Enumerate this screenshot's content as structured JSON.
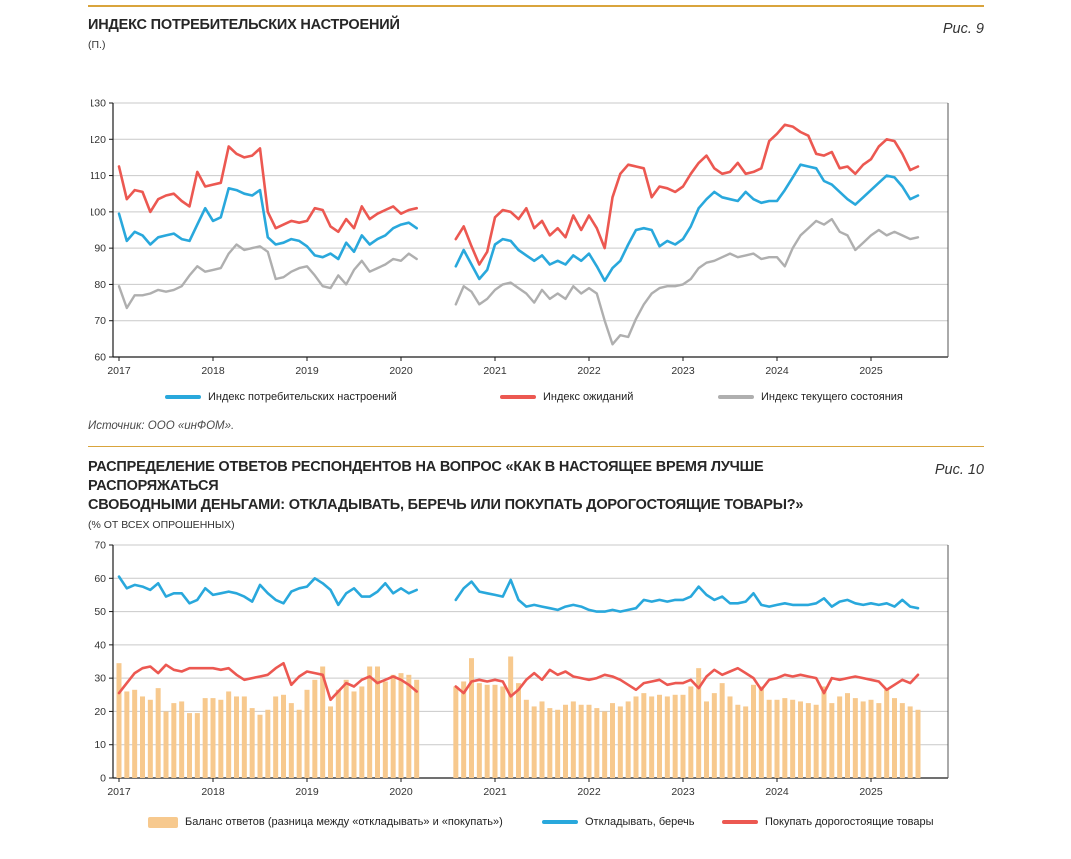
{
  "page": {
    "background": "#ffffff",
    "accent_rule_color": "#D9A43C"
  },
  "figure9": {
    "fig_label": "Рис. 9",
    "title": "ИНДЕКС ПОТРЕБИТЕЛЬСКИХ НАСТРОЕНИЙ",
    "subtitle": "(П.)",
    "source": "Источник: ООО «инФОМ».",
    "legend": [
      {
        "label": "Индекс потребительских настроений",
        "color": "#29A8DC",
        "type": "line"
      },
      {
        "label": "Индекс ожиданий",
        "color": "#EC5851",
        "type": "line"
      },
      {
        "label": "Индекс текущего состояния",
        "color": "#AFAFAF",
        "type": "line"
      }
    ]
  },
  "figure10": {
    "fig_label": "Рис. 10",
    "title_line1": "РАСПРЕДЕЛЕНИЕ ОТВЕТОВ РЕСПОНДЕНТОВ НА ВОПРОС «КАК В НАСТОЯЩЕЕ ВРЕМЯ ЛУЧШЕ РАСПОРЯЖАТЬСЯ",
    "title_line2": "СВОБОДНЫМИ ДЕНЬГАМИ: ОТКЛАДЫВАТЬ, БЕРЕЧЬ ИЛИ ПОКУПАТЬ ДОРОГОСТОЯЩИЕ ТОВАРЫ?»",
    "subtitle": "(% ОТ ВСЕХ ОПРОШЕННЫХ)",
    "legend": [
      {
        "label": "Баланс ответов (разница между «откладывать» и «покупать»)",
        "color": "#F7C98E",
        "type": "bar"
      },
      {
        "label": "Откладывать, беречь",
        "color": "#29A8DC",
        "type": "line"
      },
      {
        "label": "Покупать дорогостоящие товары",
        "color": "#EC5851",
        "type": "line"
      }
    ]
  },
  "chart_data": [
    {
      "id": "consumer-sentiment-index",
      "type": "line",
      "title": "ИНДЕКС ПОТРЕБИТЕЛЬСКИХ НАСТРОЕНИЙ (П.)",
      "x_unit": "month",
      "x_start": "2017-01",
      "x_end": "2025-07",
      "data_gap_months": [
        "2020-04",
        "2020-05",
        "2020-06",
        "2020-07"
      ],
      "year_ticks": [
        2017,
        2018,
        2019,
        2020,
        2021,
        2022,
        2023,
        2024,
        2025
      ],
      "ylim": [
        60,
        130
      ],
      "ytick_step": 10,
      "grid": true,
      "legend_position": "bottom",
      "series": [
        {
          "name": "Индекс потребительских настроений",
          "color": "#29A8DC",
          "width": 2.6,
          "values": [
            99.5,
            92,
            94.5,
            93.5,
            91,
            93,
            93.5,
            94,
            92.5,
            92,
            96.5,
            101,
            97.5,
            98.5,
            106.5,
            106,
            105,
            104.5,
            106,
            93,
            91,
            91.5,
            92.5,
            92,
            90.5,
            88,
            87.5,
            88.5,
            87,
            91.5,
            89,
            93.5,
            91,
            92.5,
            93.5,
            95.5,
            96.5,
            97,
            95.5,
            null,
            null,
            null,
            null,
            85,
            89.5,
            85.5,
            81.5,
            84,
            91,
            92.5,
            92,
            89.5,
            88,
            86.5,
            88,
            85.5,
            86.5,
            85.5,
            88,
            86.5,
            88.5,
            85,
            81,
            84.5,
            86.5,
            91,
            95,
            95.5,
            95,
            90.5,
            92,
            91,
            92.5,
            96,
            101,
            103.5,
            105.5,
            104,
            103.5,
            103,
            105.5,
            103.5,
            102.5,
            103,
            103,
            106,
            109.5,
            113,
            112.5,
            112,
            108.5,
            107.5,
            105.5,
            103.5,
            102,
            104,
            106,
            108,
            110,
            109.5,
            107,
            103.5,
            104.5
          ]
        },
        {
          "name": "Индекс ожиданий",
          "color": "#EC5851",
          "width": 2.6,
          "values": [
            112.5,
            103.5,
            106,
            105.5,
            100,
            103.5,
            104.5,
            105,
            103,
            101.5,
            111,
            107,
            107.5,
            108,
            118,
            116,
            115,
            115.5,
            117.5,
            100,
            95.5,
            96.5,
            97.5,
            97,
            97.5,
            101,
            100.5,
            96,
            94.5,
            98,
            95.5,
            101.5,
            98,
            99.5,
            100.5,
            101.5,
            99.5,
            100.5,
            101,
            null,
            null,
            null,
            null,
            92.5,
            96,
            90.5,
            85.5,
            89,
            98.5,
            100.5,
            100,
            98,
            101,
            95.5,
            97.5,
            93.5,
            95.5,
            93,
            99,
            95,
            99,
            95.5,
            90,
            104,
            110.5,
            113,
            112.5,
            112,
            104,
            107,
            106.5,
            105.5,
            107,
            110.5,
            113.5,
            115.5,
            112,
            110.5,
            111,
            113.5,
            110.5,
            111,
            112,
            119.5,
            121.5,
            124,
            123.5,
            122,
            121,
            116,
            115.5,
            116.5,
            112,
            112.5,
            110.5,
            113,
            114.5,
            118,
            120,
            119.5,
            116,
            111.5,
            112.5
          ]
        },
        {
          "name": "Индекс текущего состояния",
          "color": "#AFAFAF",
          "width": 2.4,
          "values": [
            79.5,
            73.5,
            77,
            77,
            77.5,
            78.5,
            78,
            78.5,
            79.5,
            82.5,
            85,
            83.5,
            84,
            84.5,
            88.5,
            91,
            89.5,
            90,
            90.5,
            89,
            81.5,
            82,
            83.5,
            84.5,
            85,
            82.5,
            79.5,
            79,
            82.5,
            80,
            84,
            86.5,
            83.5,
            84.5,
            85.5,
            87,
            86.5,
            88.5,
            87,
            null,
            null,
            null,
            null,
            74.5,
            79.5,
            78,
            74.5,
            76,
            78.5,
            80,
            80.5,
            79,
            77.5,
            75,
            78.5,
            76,
            77.5,
            76,
            79.5,
            77.5,
            79,
            77.5,
            70,
            63.5,
            66,
            65.5,
            70.5,
            74.5,
            77.5,
            79,
            79.5,
            79.5,
            80,
            81.5,
            84.5,
            86,
            86.5,
            87.5,
            88.5,
            87.5,
            88,
            88.5,
            87,
            87.5,
            87.5,
            85,
            90,
            93.5,
            95.5,
            97.5,
            96.5,
            98,
            94.5,
            93.5,
            89.5,
            91.5,
            93.5,
            95,
            93.5,
            94.5,
            93.5,
            92.5,
            93
          ]
        }
      ]
    },
    {
      "id": "free-money-answers",
      "type": "bar+line",
      "title": "РАСПРЕДЕЛЕНИЕ ОТВЕТОВ РЕСПОНДЕНТОВ (% ОТ ВСЕХ ОПРОШЕННЫХ)",
      "x_unit": "month",
      "x_start": "2017-01",
      "x_end": "2025-07",
      "data_gap_months": [
        "2020-04",
        "2020-05",
        "2020-06",
        "2020-07"
      ],
      "year_ticks": [
        2017,
        2018,
        2019,
        2020,
        2021,
        2022,
        2023,
        2024,
        2025
      ],
      "ylim": [
        0,
        70
      ],
      "ytick_step": 10,
      "grid": true,
      "legend_position": "bottom",
      "bar_series": {
        "name": "Баланс ответов (разница между «откладывать» и «покупать»)",
        "color": "#F7C98E",
        "values": [
          34.5,
          26,
          26.5,
          24.5,
          23.5,
          27,
          20,
          22.5,
          23,
          19.5,
          19.5,
          24,
          24,
          23.5,
          26,
          24.5,
          24.5,
          21,
          19,
          20.5,
          24.5,
          25,
          22.5,
          20.5,
          26.5,
          29.5,
          33.5,
          21.5,
          26.5,
          29.5,
          26,
          27.5,
          33.5,
          33.5,
          29,
          31,
          31.5,
          31,
          29.5,
          null,
          null,
          null,
          null,
          27.5,
          29,
          36,
          28.5,
          28,
          28,
          27.5,
          36.5,
          28.5,
          23.5,
          21.5,
          23,
          21,
          20.5,
          22,
          23,
          22,
          22,
          21,
          20,
          22.5,
          21.5,
          23,
          24.5,
          25.5,
          24.5,
          25,
          24.5,
          25,
          25,
          27.5,
          33,
          23,
          25.5,
          28.5,
          24.5,
          22,
          21.5,
          28,
          27.5,
          23.5,
          23.5,
          24,
          23.5,
          23,
          22.5,
          22,
          27.5,
          22.5,
          24.5,
          25.5,
          24,
          23,
          23.5,
          22.5,
          26.5,
          24,
          22.5,
          21.5,
          20.5
        ]
      },
      "series": [
        {
          "name": "Откладывать, беречь",
          "color": "#29A8DC",
          "width": 2.6,
          "values": [
            60.5,
            57,
            58,
            57.5,
            56.5,
            58.5,
            54.5,
            55.5,
            55.5,
            52.5,
            53.5,
            57,
            55,
            55.5,
            56,
            55.5,
            54.5,
            53,
            58,
            55.5,
            53.5,
            52.5,
            56,
            57,
            57.5,
            60,
            58.5,
            56.5,
            52,
            55.5,
            57,
            54.5,
            54.5,
            56,
            58.5,
            55.5,
            57,
            55.5,
            56.5,
            null,
            null,
            null,
            null,
            53.5,
            57,
            59,
            56,
            55.5,
            55,
            54.5,
            59.5,
            53.5,
            51.5,
            52,
            51.5,
            51,
            50.5,
            51.5,
            52,
            51.5,
            50.5,
            50,
            50,
            50.5,
            50,
            50.5,
            51,
            53.5,
            53,
            53.5,
            53,
            53.5,
            53.5,
            54.5,
            57.5,
            55,
            53.5,
            54.5,
            52.5,
            52.5,
            53,
            55.5,
            52,
            51.5,
            52,
            52.5,
            52,
            52,
            52,
            52.5,
            54,
            51.5,
            53,
            53.5,
            52.5,
            52,
            52.5,
            52,
            52.5,
            51.5,
            53.5,
            51.5,
            51
          ]
        },
        {
          "name": "Покупать дорогостоящие товары",
          "color": "#EC5851",
          "width": 2.6,
          "values": [
            25.5,
            28.5,
            31.5,
            33,
            33.5,
            31.5,
            34,
            32.5,
            32,
            33,
            33,
            33,
            33,
            32.5,
            33,
            31,
            29.5,
            30,
            30.5,
            31,
            33,
            34.5,
            28,
            30.5,
            32,
            31.5,
            31,
            23.5,
            26,
            28.5,
            27.5,
            29.5,
            30.5,
            28.5,
            29.5,
            30.5,
            29.5,
            28,
            26,
            null,
            null,
            null,
            null,
            27.5,
            25.5,
            29,
            29.5,
            29,
            29.5,
            29,
            24.5,
            26.5,
            29.5,
            31.5,
            29.5,
            32.5,
            31,
            32,
            30.5,
            30,
            29.5,
            30,
            31,
            30.5,
            29.5,
            28,
            26.5,
            28.5,
            29,
            29.5,
            28,
            28.5,
            28.5,
            29.5,
            27,
            30.5,
            32.5,
            31,
            32,
            33,
            31.5,
            30,
            26.5,
            29.5,
            30,
            31,
            30.5,
            31,
            30.5,
            30,
            25.5,
            30,
            29.5,
            30,
            30.5,
            30,
            29.5,
            29,
            26.5,
            28,
            29.5,
            28.5,
            31
          ]
        }
      ]
    }
  ]
}
